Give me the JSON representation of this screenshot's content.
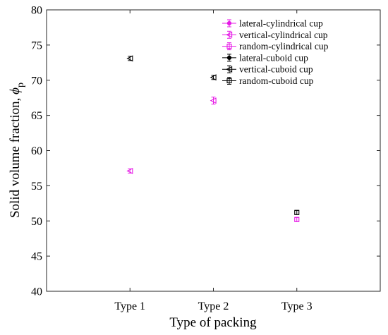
{
  "chart_data": {
    "type": "scatter",
    "categories": [
      "Type 1",
      "Type 2",
      "Type 3"
    ],
    "xlabel": "Type of packing",
    "ylabel_main": "Solid volume fraction, ",
    "ylabel_symbol": "ϕ",
    "ylabel_subscript": "p",
    "ylim": [
      40,
      80
    ],
    "yticks": [
      "40",
      "45",
      "50",
      "55",
      "60",
      "65",
      "70",
      "75",
      "80"
    ],
    "legend_position": "top-right",
    "grid": false,
    "error_bars": true,
    "series": [
      {
        "name": "lateral-cylindrical cup",
        "marker": "circle",
        "color": "#e619e6",
        "values": [
          null,
          null,
          null
        ]
      },
      {
        "name": "vertical-cylindrical cup",
        "marker": "triangle-left",
        "color": "#e619e6",
        "values": [
          57.1,
          67.1,
          null
        ],
        "errors": [
          0.3,
          0.5,
          null
        ]
      },
      {
        "name": "random-cylindrical cup",
        "marker": "square",
        "color": "#e619e6",
        "values": [
          null,
          null,
          50.2
        ],
        "errors": [
          null,
          null,
          0.3
        ]
      },
      {
        "name": "lateral-cuboid cup",
        "marker": "circle",
        "color": "#000000",
        "values": [
          null,
          null,
          null
        ]
      },
      {
        "name": "vertical-cuboid cup",
        "marker": "triangle-left",
        "color": "#000000",
        "values": [
          73.1,
          70.4,
          null
        ],
        "errors": [
          0.3,
          0.3,
          null
        ]
      },
      {
        "name": "random-cuboid cup",
        "marker": "square",
        "color": "#000000",
        "values": [
          null,
          null,
          51.2
        ],
        "errors": [
          null,
          null,
          0.3
        ]
      }
    ]
  }
}
